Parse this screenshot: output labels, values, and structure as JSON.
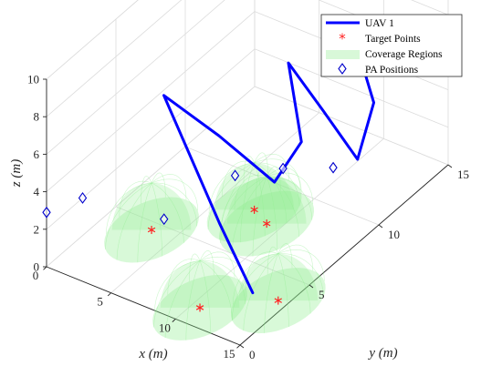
{
  "chart_data": {
    "type": "scatter",
    "xlabel": "x (m)",
    "ylabel": "y (m)",
    "zlabel": "z (m)",
    "xlim": [
      0,
      15
    ],
    "ylim": [
      0,
      15
    ],
    "zlim": [
      0,
      10
    ],
    "x_ticks": [
      "0",
      "5",
      "10",
      "15"
    ],
    "y_ticks": [
      "0",
      "5",
      "10",
      "15"
    ],
    "z_ticks": [
      "0",
      "2",
      "4",
      "6",
      "8",
      "10"
    ],
    "grid": true,
    "legend_position": "top-right",
    "legend": [
      "UAV 1",
      "Target Points",
      "Coverage Regions",
      "PA Positions"
    ],
    "colors": {
      "uav": "#0000ff",
      "target": "#ff2222",
      "coverage": "#90ee90",
      "pa": "#0000cc"
    },
    "uav_trajectory": [
      [
        13.4,
        2.4,
        0.8
      ],
      [
        10.0,
        3.2,
        3.0
      ],
      [
        4.9,
        3.9,
        8.0
      ],
      [
        8.0,
        5.0,
        6.0
      ],
      [
        11.0,
        6.2,
        3.6
      ],
      [
        11.8,
        7.4,
        5.2
      ],
      [
        9.5,
        8.6,
        8.0
      ],
      [
        12.0,
        8.8,
        6.0
      ],
      [
        14.0,
        9.4,
        3.6
      ],
      [
        13.0,
        11.5,
        5.0
      ],
      [
        10.5,
        12.8,
        6.0
      ]
    ],
    "target_points": [
      [
        14.3,
        3.4,
        0
      ],
      [
        10.6,
        1.2,
        0
      ],
      [
        7.5,
        8.0,
        0
      ],
      [
        9.0,
        7.5,
        0
      ],
      [
        3.3,
        4.5,
        0
      ]
    ],
    "coverage_regions": [
      {
        "center": [
          14.3,
          3.4
        ],
        "radius": 2.5
      },
      {
        "center": [
          10.6,
          1.2
        ],
        "radius": 2.5
      },
      {
        "center": [
          7.5,
          8.0
        ],
        "radius": 2.5
      },
      {
        "center": [
          9.0,
          7.5
        ],
        "radius": 2.5
      },
      {
        "center": [
          3.3,
          4.5
        ],
        "radius": 2.5
      }
    ],
    "pa_positions": [
      [
        0,
        0,
        2.9
      ],
      [
        0,
        2.6,
        2.0
      ],
      [
        3.3,
        5.4,
        0
      ],
      [
        4.4,
        9.5,
        0
      ],
      [
        6.5,
        11.0,
        0
      ],
      [
        9.1,
        12.2,
        0
      ]
    ]
  }
}
